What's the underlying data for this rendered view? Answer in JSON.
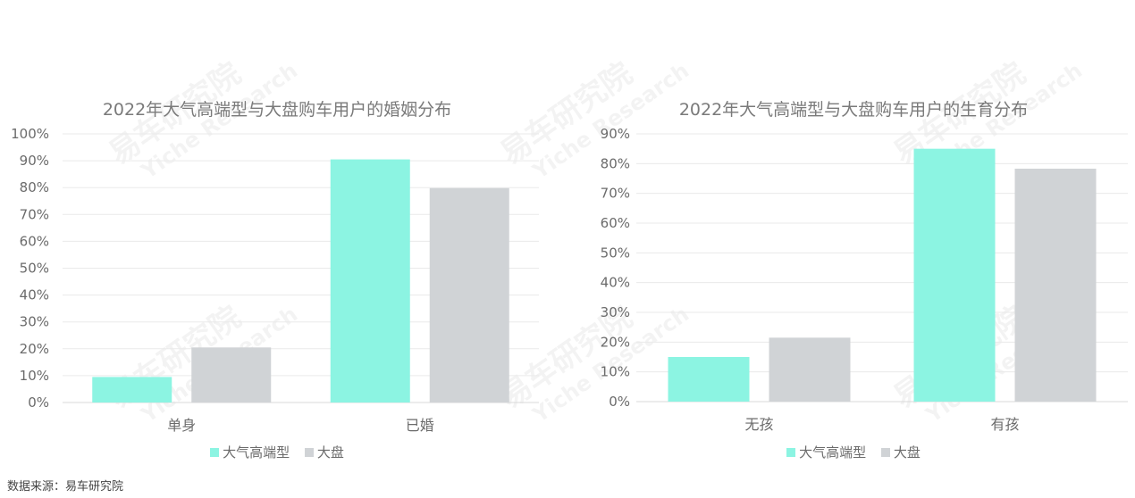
{
  "source": "数据来源：易车研究院",
  "watermark": {
    "cn": "易车研究院",
    "en": "Yiche Research"
  },
  "colors": {
    "series1": "#8cf4e2",
    "series2": "#d0d3d6",
    "grid": "#eaeaea",
    "axis": "#d9d9d9"
  },
  "chart_data": [
    {
      "type": "bar",
      "title": "2022年大气高端型与大盘购车用户的婚姻分布",
      "categories": [
        "单身",
        "已婚"
      ],
      "series": [
        {
          "name": "大气高端型",
          "values": [
            9.5,
            90.5
          ]
        },
        {
          "name": "大盘",
          "values": [
            20.5,
            79.8
          ]
        }
      ],
      "ylim": [
        0,
        100
      ],
      "yticks": [
        "0%",
        "10%",
        "20%",
        "30%",
        "40%",
        "50%",
        "60%",
        "70%",
        "80%",
        "90%",
        "100%"
      ],
      "grid": true,
      "legend": "bottom-center"
    },
    {
      "type": "bar",
      "title": "2022年大气高端型与大盘购车用户的生育分布",
      "categories": [
        "无孩",
        "有孩"
      ],
      "series": [
        {
          "name": "大气高端型",
          "values": [
            15,
            85
          ]
        },
        {
          "name": "大盘",
          "values": [
            21.5,
            78.3
          ]
        }
      ],
      "ylim": [
        0,
        90
      ],
      "yticks": [
        "0%",
        "10%",
        "20%",
        "30%",
        "40%",
        "50%",
        "60%",
        "70%",
        "80%",
        "90%"
      ],
      "grid": true,
      "legend": "bottom-center"
    }
  ]
}
